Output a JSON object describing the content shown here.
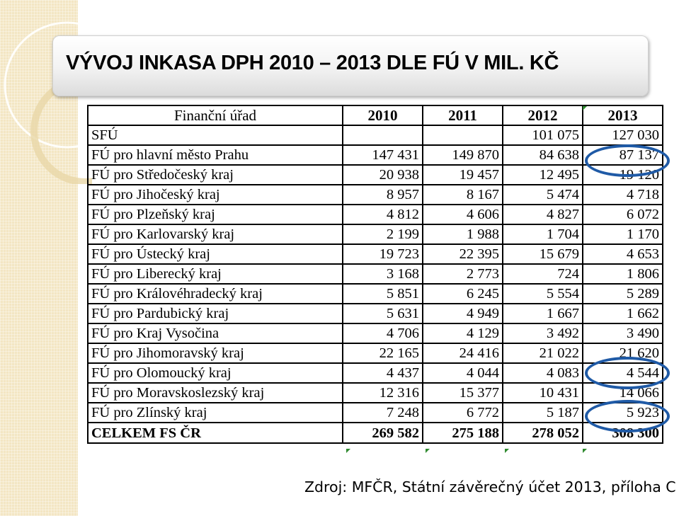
{
  "title": "VÝVOJ INKASA DPH 2010 – 2013 DLE FÚ V MIL. KČ",
  "table": {
    "header": [
      "Finanční úřad",
      "2010",
      "2011",
      "2012",
      "2013"
    ],
    "rows": [
      [
        "SFÚ",
        "",
        "",
        "101 075",
        "127 030"
      ],
      [
        "FÚ pro hlavní město Prahu",
        "147 431",
        "149 870",
        "84 638",
        "87 137"
      ],
      [
        "FÚ pro Středočeský kraj",
        "20 938",
        "19 457",
        "12 495",
        "19 120"
      ],
      [
        "FÚ pro Jihočeský kraj",
        "8 957",
        "8 167",
        "5 474",
        "4 718"
      ],
      [
        "FÚ pro Plzeňský kraj",
        "4 812",
        "4 606",
        "4 827",
        "6 072"
      ],
      [
        "FÚ pro Karlovarský kraj",
        "2 199",
        "1 988",
        "1 704",
        "1 170"
      ],
      [
        "FÚ pro Ústecký kraj",
        "19 723",
        "22 395",
        "15 679",
        "4 653"
      ],
      [
        "FÚ pro Liberecký kraj",
        "3 168",
        "2 773",
        "724",
        "1 806"
      ],
      [
        "FÚ pro Královéhradecký kraj",
        "5 851",
        "6 245",
        "5 554",
        "5 289"
      ],
      [
        "FÚ pro Pardubický kraj",
        "5 631",
        "4 949",
        "1 667",
        "1 662"
      ],
      [
        "FÚ pro Kraj Vysočina",
        "4 706",
        "4 129",
        "3 492",
        "3 490"
      ],
      [
        "FÚ pro Jihomoravský kraj",
        "22 165",
        "24 416",
        "21 022",
        "21 620"
      ],
      [
        "FÚ pro Olomoucký kraj",
        "4 437",
        "4 044",
        "4 083",
        "4 544"
      ],
      [
        "FÚ pro Moravskoslezský kraj",
        "12 316",
        "15 377",
        "10 431",
        "14 066"
      ],
      [
        "FÚ pro Zlínský kraj",
        "7 248",
        "6 772",
        "5 187",
        "5 923"
      ]
    ],
    "total": [
      "CELKEM FS ČR",
      "269 582",
      "275 188",
      "278 052",
      "308 300"
    ]
  },
  "source": "Zdroj: MFČR, Státní závěrečný účet 2013, příloha C",
  "colors": {
    "highlight_ring": "#1f5aa6",
    "cell_marker": "#2f8a2f",
    "side_strip": "#f3e6c3"
  }
}
